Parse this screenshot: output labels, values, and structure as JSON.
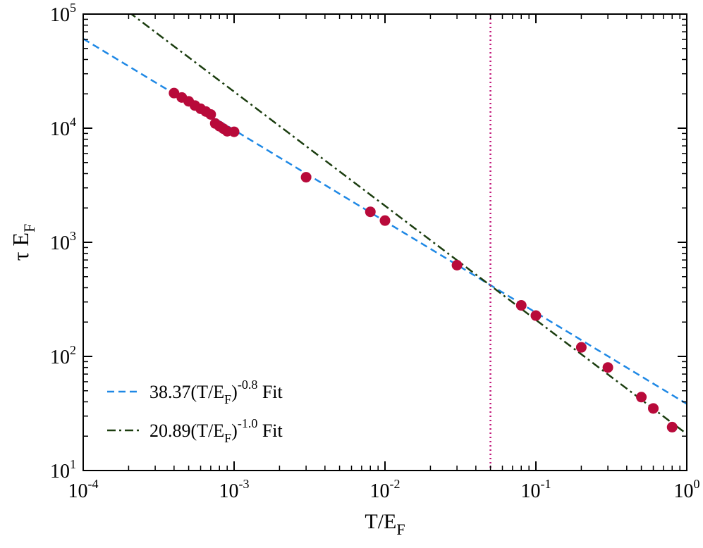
{
  "chart_data": {
    "type": "scatter",
    "title": "",
    "xlabel": "T/E",
    "xlabel_sub": "F",
    "ylabel": "τ E",
    "ylabel_sub": "F",
    "x_scale": "log",
    "y_scale": "log",
    "xlim": [
      0.0001,
      1
    ],
    "ylim": [
      10,
      100000
    ],
    "grid": false,
    "legend_position": "bottom-left",
    "x_ticks": [
      {
        "value": 0.0001,
        "base": "10",
        "exp": "-4"
      },
      {
        "value": 0.001,
        "base": "10",
        "exp": "-3"
      },
      {
        "value": 0.01,
        "base": "10",
        "exp": "-2"
      },
      {
        "value": 0.1,
        "base": "10",
        "exp": "-1"
      },
      {
        "value": 1,
        "base": "10",
        "exp": "0"
      }
    ],
    "y_ticks": [
      {
        "value": 10,
        "base": "10",
        "exp": "1"
      },
      {
        "value": 100,
        "base": "10",
        "exp": "2"
      },
      {
        "value": 1000,
        "base": "10",
        "exp": "3"
      },
      {
        "value": 10000,
        "base": "10",
        "exp": "4"
      },
      {
        "value": 100000,
        "base": "10",
        "exp": "5"
      }
    ],
    "points": {
      "name": "data",
      "color": "#b80a3a",
      "x": [
        0.0004,
        0.00045,
        0.0005,
        0.00055,
        0.0006,
        0.00065,
        0.0007,
        0.00075,
        0.0008,
        0.00085,
        0.0009,
        0.001,
        0.003,
        0.008,
        0.01,
        0.03,
        0.08,
        0.1,
        0.2,
        0.3,
        0.5,
        0.6,
        0.8
      ],
      "y": [
        20300,
        18600,
        17200,
        15800,
        14800,
        14000,
        13200,
        11000,
        10400,
        9900,
        9400,
        9300,
        3720,
        1850,
        1550,
        630,
        280,
        228,
        120,
        80,
        44,
        35,
        24
      ]
    },
    "fits": [
      {
        "name": "fit-power-0.8",
        "coef": 38.37,
        "exponent": -0.8,
        "x_range": [
          0.0001,
          1
        ],
        "color": "#1e88e5",
        "dash": "10,6",
        "legend_coef": "38.37(T/E",
        "legend_sub": "F",
        "legend_close": ")",
        "legend_exp": "-0.8",
        "legend_suffix": " Fit"
      },
      {
        "name": "fit-power-1.0",
        "coef": 20.89,
        "exponent": -1.0,
        "x_range": [
          0.0002,
          1
        ],
        "color": "#1b3d0f",
        "dash": "12,5,3,5",
        "legend_coef": "20.89(T/E",
        "legend_sub": "F",
        "legend_close": ")",
        "legend_exp": "-1.0",
        "legend_suffix": " Fit"
      }
    ],
    "vertical_line": {
      "x": 0.05,
      "color": "#c2187a"
    }
  }
}
